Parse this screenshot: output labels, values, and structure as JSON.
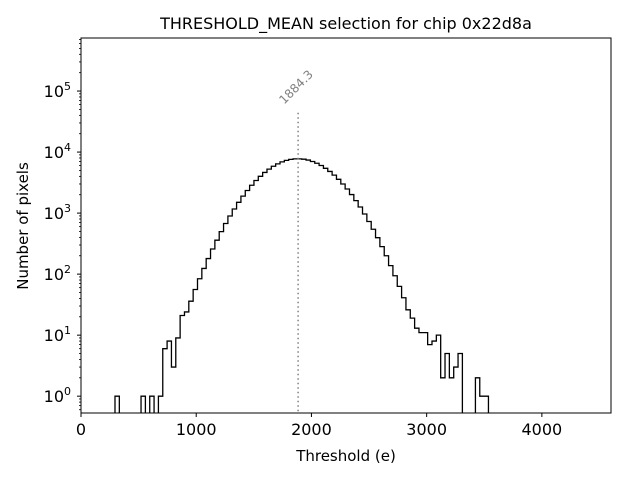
{
  "chart_data": {
    "type": "histogram",
    "title": "THRESHOLD_MEAN selection for chip 0x22d8a",
    "xlabel": "Threshold (e)",
    "ylabel": "Number of pixels",
    "xlim": [
      0,
      4600
    ],
    "ylim": [
      0.53,
      740000
    ],
    "yscale": "log",
    "xticks": [
      0,
      1000,
      2000,
      3000,
      4000
    ],
    "xtick_labels": [
      "0",
      "1000",
      "2000",
      "3000",
      "4000"
    ],
    "yticks": [
      1,
      10,
      100,
      1000,
      10000,
      100000
    ],
    "ytick_labels": [
      {
        "base": "10",
        "exp": "0"
      },
      {
        "base": "10",
        "exp": "1"
      },
      {
        "base": "10",
        "exp": "2"
      },
      {
        "base": "10",
        "exp": "3"
      },
      {
        "base": "10",
        "exp": "4"
      },
      {
        "base": "10",
        "exp": "5"
      }
    ],
    "grid": false,
    "bin_start": 295,
    "bin_width": 37.69,
    "counts": [
      1,
      0,
      0,
      0,
      0,
      0,
      1,
      0,
      1,
      0,
      1,
      6,
      8,
      3,
      9,
      21,
      24,
      36,
      56,
      84,
      124,
      180,
      258,
      360,
      497,
      675,
      897,
      1167,
      1503,
      1897,
      2344,
      2858,
      3420,
      4010,
      4634,
      5260,
      5861,
      6412,
      6902,
      7311,
      7586,
      7727,
      7745,
      7638,
      7396,
      7015,
      6561,
      6026,
      5420,
      4819,
      4188,
      3581,
      2999,
      2483,
      2014,
      1600,
      1259,
      966,
      728,
      543,
      395,
      282,
      200,
      138,
      94,
      63,
      41,
      26,
      19,
      13,
      11,
      11,
      7,
      8,
      10,
      2,
      5,
      2,
      3,
      5,
      0,
      0,
      0,
      2,
      1,
      1
    ],
    "color": "#000000",
    "vline": {
      "x": 1884.3,
      "label": "1884.3",
      "top_value": 44000,
      "color": "#808080",
      "style": "dotted"
    }
  }
}
